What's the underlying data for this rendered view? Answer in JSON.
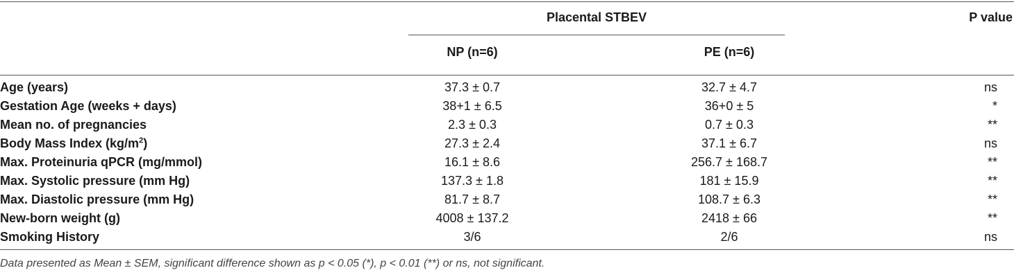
{
  "header": {
    "group_title": "Placental STBEV",
    "p_value": "P value",
    "np": "NP (n=6)",
    "pe": "PE (n=6)"
  },
  "rows": [
    {
      "label": "Age (years)",
      "np": "37.3 ± 0.7",
      "pe": "32.7 ± 4.7",
      "p": "ns"
    },
    {
      "label": "Gestation Age (weeks + days)",
      "np": "38+1 ± 6.5",
      "pe": "36+0 ± 5",
      "p": "*"
    },
    {
      "label": "Mean no. of pregnancies",
      "np": "2.3 ± 0.3",
      "pe": "0.7 ± 0.3",
      "p": "**"
    },
    {
      "label": "Body Mass Index (kg/m",
      "label_sup": "2",
      "label_end": ")",
      "np": "27.3 ± 2.4",
      "pe": "37.1 ± 6.7",
      "p": "ns"
    },
    {
      "label": "Max. Proteinuria qPCR (mg/mmol)",
      "np": "16.1 ± 8.6",
      "pe": "256.7 ± 168.7",
      "p": "**"
    },
    {
      "label": "Max. Systolic pressure (mm Hg)",
      "np": "137.3 ± 1.8",
      "pe": "181 ± 15.9",
      "p": "**"
    },
    {
      "label": "Max. Diastolic pressure (mm Hg)",
      "np": "81.7 ± 8.7",
      "pe": "108.7 ± 6.3",
      "p": "**"
    },
    {
      "label": "New-born weight (g)",
      "np": "4008 ± 137.2",
      "pe": "2418 ± 66",
      "p": "**"
    },
    {
      "label": "Smoking History",
      "np": "3/6",
      "pe": "2/6",
      "p": "ns"
    }
  ],
  "footnote": "Data presented as Mean ± SEM, significant difference shown as p < 0.05 (*), p < 0.01 (**) or ns, not significant."
}
